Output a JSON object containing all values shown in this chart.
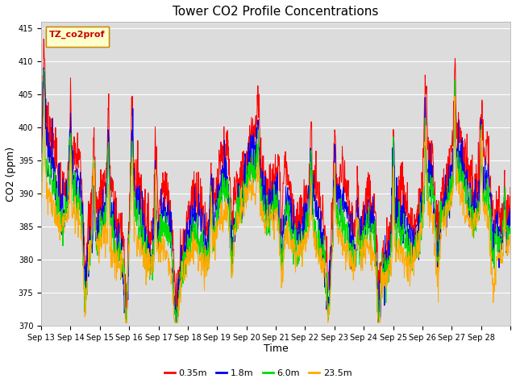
{
  "title": "Tower CO2 Profile Concentrations",
  "xlabel": "Time",
  "ylabel": "CO2 (ppm)",
  "ylim": [
    370,
    416
  ],
  "yticks": [
    370,
    375,
    380,
    385,
    390,
    395,
    400,
    405,
    410,
    415
  ],
  "legend_label": "TZ_co2prof",
  "series_labels": [
    "0.35m",
    "1.8m",
    "6.0m",
    "23.5m"
  ],
  "series_colors": [
    "#ff0000",
    "#0000ee",
    "#00dd00",
    "#ffaa00"
  ],
  "x_tick_labels": [
    "Sep 13",
    "Sep 14",
    "Sep 15",
    "Sep 16",
    "Sep 17",
    "Sep 18",
    "Sep 19",
    "Sep 20",
    "Sep 21",
    "Sep 22",
    "Sep 23",
    "Sep 24",
    "Sep 25",
    "Sep 26",
    "Sep 27",
    "Sep 28"
  ],
  "n_days": 16,
  "plot_bg_color": "#dcdcdc",
  "fig_bg_color": "#ffffff",
  "title_fontsize": 11,
  "axis_label_fontsize": 9,
  "tick_fontsize": 7,
  "legend_fontsize": 8
}
